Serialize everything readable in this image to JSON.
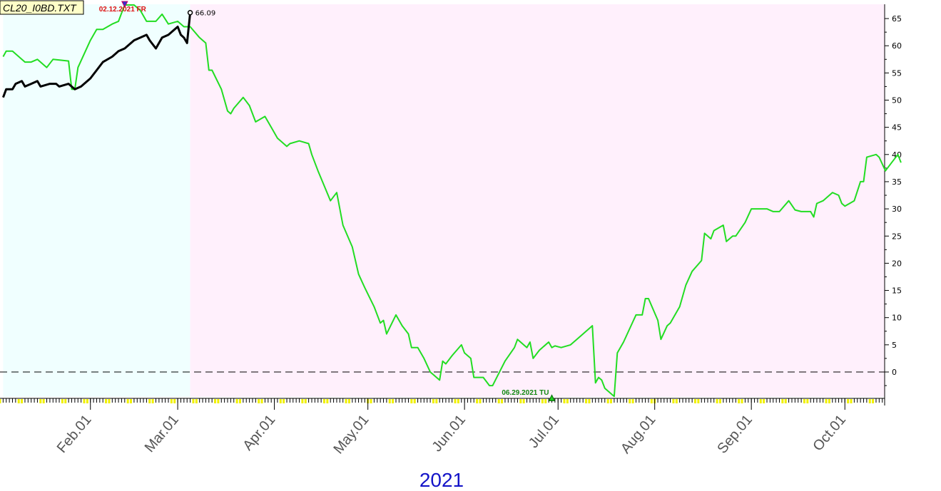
{
  "chart_data": {
    "type": "line",
    "title": "CL20_I0BD.TXT",
    "year_label": "2021",
    "ylim": [
      -5,
      67
    ],
    "yticks": [
      0,
      5,
      10,
      15,
      20,
      25,
      30,
      35,
      40,
      45,
      50,
      55,
      60,
      65
    ],
    "y_axis_position": "right",
    "months": [
      "Feb.01",
      "Mar.01",
      "Apr.01",
      "May.01",
      "Jun.01",
      "Jul.01",
      "Aug.01",
      "Sep.01",
      "Oct.01"
    ],
    "zero_line": {
      "value": 0,
      "style": "dashed"
    },
    "regions": [
      {
        "from": "2021-01-04",
        "to": "2021-03-05",
        "color": "#f0ffff"
      },
      {
        "from": "2021-03-05",
        "to": "2021-10-19",
        "color": "#fff0fc"
      }
    ],
    "annotations": [
      {
        "text": "02.12.2021 FR",
        "x": "2021-02-12",
        "y": 67,
        "color": "#dd1111",
        "marker": "down-arrow"
      },
      {
        "text": "06.29.2021 TU",
        "x": "2021-06-29",
        "y": -4.5,
        "color": "#118811",
        "marker": "up-arrow"
      },
      {
        "text": "66.09",
        "x": "2021-03-05",
        "y": 66.09,
        "color": "#000000",
        "marker": "circle"
      }
    ],
    "series": [
      {
        "color": "#22dd22",
        "points": [
          [
            "2021-01-04",
            58
          ],
          [
            "2021-01-05",
            59
          ],
          [
            "2021-01-07",
            59
          ],
          [
            "2021-01-08",
            58.5
          ],
          [
            "2021-01-11",
            57
          ],
          [
            "2021-01-13",
            57
          ],
          [
            "2021-01-15",
            57.5
          ],
          [
            "2021-01-18",
            56
          ],
          [
            "2021-01-20",
            57.5
          ],
          [
            "2021-01-25",
            57.2
          ],
          [
            "2021-01-26",
            52
          ],
          [
            "2021-01-27",
            52
          ],
          [
            "2021-01-28",
            56
          ],
          [
            "2021-02-01",
            61
          ],
          [
            "2021-02-03",
            63
          ],
          [
            "2021-02-05",
            63
          ],
          [
            "2021-02-08",
            64
          ],
          [
            "2021-02-10",
            64.5
          ],
          [
            "2021-02-11",
            66
          ],
          [
            "2021-02-12",
            67.5
          ],
          [
            "2021-02-15",
            67.5
          ],
          [
            "2021-02-17",
            66.5
          ],
          [
            "2021-02-19",
            64.5
          ],
          [
            "2021-02-22",
            64.5
          ],
          [
            "2021-02-24",
            65.8
          ],
          [
            "2021-02-26",
            64
          ],
          [
            "2021-03-01",
            64.5
          ],
          [
            "2021-03-03",
            63.5
          ],
          [
            "2021-03-05",
            63.5
          ],
          [
            "2021-03-08",
            61.5
          ],
          [
            "2021-03-10",
            60.5
          ],
          [
            "2021-03-11",
            55.5
          ],
          [
            "2021-03-12",
            55.5
          ],
          [
            "2021-03-15",
            52
          ],
          [
            "2021-03-17",
            48
          ],
          [
            "2021-03-18",
            47.5
          ],
          [
            "2021-03-19",
            48.5
          ],
          [
            "2021-03-22",
            50.5
          ],
          [
            "2021-03-24",
            49
          ],
          [
            "2021-03-26",
            46
          ],
          [
            "2021-03-29",
            47
          ],
          [
            "2021-03-31",
            45
          ],
          [
            "2021-04-02",
            43
          ],
          [
            "2021-04-05",
            41.5
          ],
          [
            "2021-04-06",
            42
          ],
          [
            "2021-04-09",
            42.5
          ],
          [
            "2021-04-12",
            42
          ],
          [
            "2021-04-13",
            40
          ],
          [
            "2021-04-15",
            37
          ],
          [
            "2021-04-19",
            31.5
          ],
          [
            "2021-04-21",
            33
          ],
          [
            "2021-04-23",
            27
          ],
          [
            "2021-04-26",
            23
          ],
          [
            "2021-04-28",
            18
          ],
          [
            "2021-04-30",
            15.5
          ],
          [
            "2021-05-03",
            12
          ],
          [
            "2021-05-05",
            9
          ],
          [
            "2021-05-06",
            9.5
          ],
          [
            "2021-05-07",
            7
          ],
          [
            "2021-05-10",
            10.5
          ],
          [
            "2021-05-12",
            8.5
          ],
          [
            "2021-05-14",
            7
          ],
          [
            "2021-05-15",
            4.5
          ],
          [
            "2021-05-17",
            4.5
          ],
          [
            "2021-05-19",
            2.5
          ],
          [
            "2021-05-21",
            0
          ],
          [
            "2021-05-24",
            -1.5
          ],
          [
            "2021-05-25",
            2
          ],
          [
            "2021-05-26",
            1.5
          ],
          [
            "2021-05-28",
            3
          ],
          [
            "2021-05-31",
            5
          ],
          [
            "2021-06-01",
            3.5
          ],
          [
            "2021-06-03",
            2.5
          ],
          [
            "2021-06-04",
            -1
          ],
          [
            "2021-06-07",
            -1
          ],
          [
            "2021-06-09",
            -2.5
          ],
          [
            "2021-06-10",
            -2.5
          ],
          [
            "2021-06-14",
            2
          ],
          [
            "2021-06-17",
            4.5
          ],
          [
            "2021-06-18",
            6
          ],
          [
            "2021-06-21",
            4.5
          ],
          [
            "2021-06-22",
            5.5
          ],
          [
            "2021-06-23",
            2.5
          ],
          [
            "2021-06-25",
            4
          ],
          [
            "2021-06-28",
            5.5
          ],
          [
            "2021-06-29",
            4.5
          ],
          [
            "2021-06-30",
            4.8
          ],
          [
            "2021-07-02",
            4.5
          ],
          [
            "2021-07-05",
            5
          ],
          [
            "2021-07-07",
            6
          ],
          [
            "2021-07-09",
            7
          ],
          [
            "2021-07-12",
            8.5
          ],
          [
            "2021-07-13",
            -2
          ],
          [
            "2021-07-14",
            -1
          ],
          [
            "2021-07-15",
            -1.5
          ],
          [
            "2021-07-16",
            -3
          ],
          [
            "2021-07-19",
            -4.5
          ],
          [
            "2021-07-20",
            3.5
          ],
          [
            "2021-07-22",
            5.5
          ],
          [
            "2021-07-26",
            10.5
          ],
          [
            "2021-07-28",
            10.5
          ],
          [
            "2021-07-29",
            13.5
          ],
          [
            "2021-07-30",
            13.5
          ],
          [
            "2021-08-02",
            9.5
          ],
          [
            "2021-08-03",
            6
          ],
          [
            "2021-08-05",
            8.5
          ],
          [
            "2021-08-06",
            9
          ],
          [
            "2021-08-09",
            12
          ],
          [
            "2021-08-11",
            16
          ],
          [
            "2021-08-13",
            18.5
          ],
          [
            "2021-08-16",
            20.5
          ],
          [
            "2021-08-17",
            25.5
          ],
          [
            "2021-08-19",
            24.5
          ],
          [
            "2021-08-20",
            26
          ],
          [
            "2021-08-23",
            27
          ],
          [
            "2021-08-24",
            24
          ],
          [
            "2021-08-26",
            25
          ],
          [
            "2021-08-27",
            25
          ],
          [
            "2021-08-30",
            27.5
          ],
          [
            "2021-09-01",
            30
          ],
          [
            "2021-09-03",
            30
          ],
          [
            "2021-09-06",
            30
          ],
          [
            "2021-09-08",
            29.5
          ],
          [
            "2021-09-10",
            29.5
          ],
          [
            "2021-09-13",
            31.5
          ],
          [
            "2021-09-15",
            29.8
          ],
          [
            "2021-09-17",
            29.5
          ],
          [
            "2021-09-20",
            29.5
          ],
          [
            "2021-09-21",
            28.5
          ],
          [
            "2021-09-22",
            31
          ],
          [
            "2021-09-24",
            31.5
          ],
          [
            "2021-09-27",
            33
          ],
          [
            "2021-09-29",
            32.5
          ],
          [
            "2021-09-30",
            31
          ],
          [
            "2021-10-01",
            30.5
          ],
          [
            "2021-10-04",
            31.5
          ],
          [
            "2021-10-06",
            35
          ],
          [
            "2021-10-07",
            35
          ],
          [
            "2021-10-08",
            39.5
          ],
          [
            "2021-10-11",
            40
          ],
          [
            "2021-10-12",
            39.5
          ],
          [
            "2021-10-14",
            37
          ],
          [
            "2021-10-16",
            38.5
          ],
          [
            "2021-10-18",
            40
          ],
          [
            "2021-10-19",
            38.5
          ]
        ]
      },
      {
        "color": "#000000",
        "points": [
          [
            "2021-01-04",
            50.5
          ],
          [
            "2021-01-05",
            52
          ],
          [
            "2021-01-07",
            52
          ],
          [
            "2021-01-08",
            53
          ],
          [
            "2021-01-10",
            53.5
          ],
          [
            "2021-01-11",
            52.5
          ],
          [
            "2021-01-13",
            53
          ],
          [
            "2021-01-15",
            53.5
          ],
          [
            "2021-01-16",
            52.5
          ],
          [
            "2021-01-19",
            53
          ],
          [
            "2021-01-21",
            53
          ],
          [
            "2021-01-22",
            52.5
          ],
          [
            "2021-01-25",
            53
          ],
          [
            "2021-01-27",
            52
          ],
          [
            "2021-01-29",
            52.5
          ],
          [
            "2021-02-01",
            54
          ],
          [
            "2021-02-03",
            55.5
          ],
          [
            "2021-02-05",
            57
          ],
          [
            "2021-02-08",
            58
          ],
          [
            "2021-02-10",
            59
          ],
          [
            "2021-02-12",
            59.5
          ],
          [
            "2021-02-15",
            61
          ],
          [
            "2021-02-17",
            61.5
          ],
          [
            "2021-02-19",
            62
          ],
          [
            "2021-02-20",
            61
          ],
          [
            "2021-02-22",
            59.5
          ],
          [
            "2021-02-24",
            61.5
          ],
          [
            "2021-02-26",
            62
          ],
          [
            "2021-03-01",
            63.5
          ],
          [
            "2021-03-02",
            62
          ],
          [
            "2021-03-03",
            61.5
          ],
          [
            "2021-03-04",
            60.5
          ],
          [
            "2021-03-05",
            66.09
          ]
        ]
      }
    ]
  }
}
